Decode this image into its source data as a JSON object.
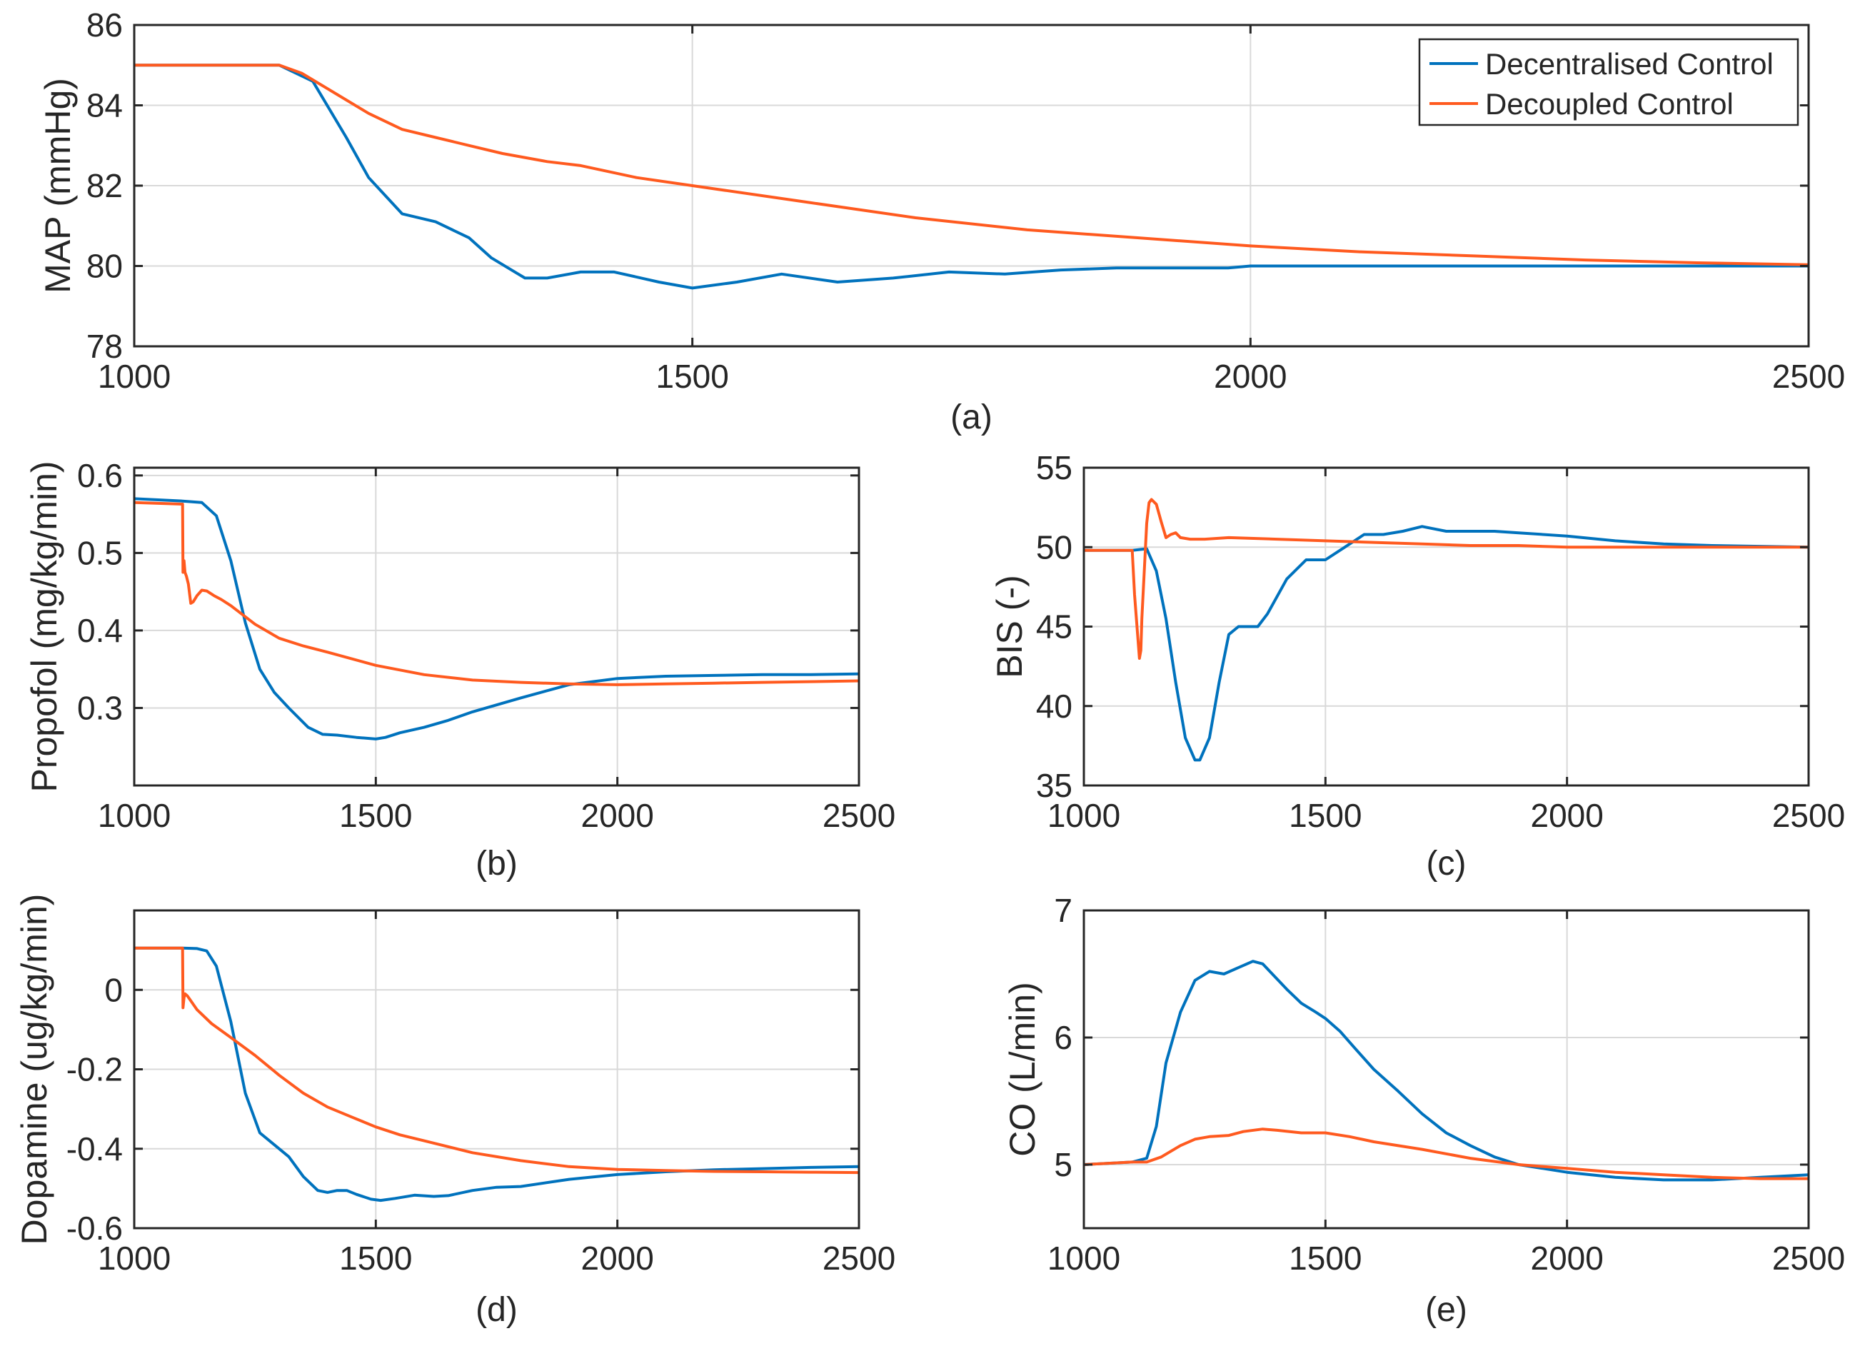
{
  "colors": {
    "decentralised": "#0072BD",
    "decoupled": "#FF5A1F",
    "grid": "#d9d9d9",
    "axis": "#262626"
  },
  "legend": {
    "entries": [
      "Decentralised Control",
      "Decoupled Control"
    ],
    "location": "top-right"
  },
  "chart_data": [
    {
      "id": "a",
      "caption": "(a)",
      "type": "line",
      "ylabel": "MAP (mmHg)",
      "xlim": [
        1000,
        2500
      ],
      "ylim": [
        78,
        86
      ],
      "xticks": [
        1000,
        1500,
        2000,
        2500
      ],
      "yticks": [
        78,
        80,
        82,
        84,
        86
      ],
      "xtick_labels": [
        "1000",
        "1500",
        "2000",
        "2500"
      ],
      "ytick_labels": [
        "78",
        "80",
        "82",
        "84",
        "86"
      ],
      "grid": true,
      "series": [
        {
          "name": "Decentralised Control",
          "x": [
            1000,
            1100,
            1130,
            1160,
            1190,
            1210,
            1240,
            1270,
            1300,
            1320,
            1350,
            1370,
            1400,
            1430,
            1470,
            1500,
            1540,
            1580,
            1630,
            1680,
            1730,
            1780,
            1830,
            1880,
            1930,
            1980,
            2000,
            2100,
            2200,
            2300,
            2500
          ],
          "y": [
            85,
            85,
            85,
            84.6,
            83.2,
            82.2,
            81.3,
            81.1,
            80.7,
            80.2,
            79.7,
            79.7,
            79.85,
            79.85,
            79.6,
            79.45,
            79.6,
            79.8,
            79.6,
            79.7,
            79.85,
            79.8,
            79.9,
            79.95,
            79.95,
            79.95,
            80,
            80,
            80,
            80,
            80
          ]
        },
        {
          "name": "Decoupled Control",
          "x": [
            1000,
            1130,
            1150,
            1180,
            1210,
            1240,
            1270,
            1300,
            1330,
            1370,
            1400,
            1450,
            1500,
            1600,
            1700,
            1800,
            1900,
            2000,
            2100,
            2200,
            2300,
            2400,
            2500
          ],
          "y": [
            85,
            85,
            84.8,
            84.3,
            83.8,
            83.4,
            83.2,
            83.0,
            82.8,
            82.6,
            82.5,
            82.2,
            82.0,
            81.6,
            81.2,
            80.9,
            80.7,
            80.5,
            80.35,
            80.25,
            80.15,
            80.08,
            80.03
          ]
        }
      ]
    },
    {
      "id": "b",
      "caption": "(b)",
      "type": "line",
      "ylabel": "Propofol (mg/kg/min)",
      "xlim": [
        1000,
        2500
      ],
      "ylim": [
        0.2,
        0.61
      ],
      "xticks": [
        1000,
        1500,
        2000,
        2500
      ],
      "yticks": [
        0.3,
        0.4,
        0.5,
        0.6
      ],
      "xtick_labels": [
        "1000",
        "1500",
        "2000",
        "2500"
      ],
      "ytick_labels": [
        "0.3",
        "0.4",
        "0.5",
        "0.6"
      ],
      "grid": true,
      "series": [
        {
          "name": "Decentralised Control",
          "x": [
            1000,
            1100,
            1140,
            1170,
            1200,
            1230,
            1260,
            1290,
            1320,
            1360,
            1390,
            1420,
            1460,
            1500,
            1520,
            1550,
            1600,
            1650,
            1700,
            1800,
            1900,
            2000,
            2100,
            2200,
            2300,
            2400,
            2500
          ],
          "y": [
            0.57,
            0.567,
            0.565,
            0.548,
            0.49,
            0.41,
            0.35,
            0.32,
            0.3,
            0.275,
            0.266,
            0.265,
            0.262,
            0.26,
            0.262,
            0.268,
            0.275,
            0.284,
            0.295,
            0.313,
            0.33,
            0.338,
            0.341,
            0.342,
            0.343,
            0.343,
            0.344
          ]
        },
        {
          "name": "Decoupled Control",
          "x": [
            1000,
            1100,
            1101,
            1103,
            1105,
            1108,
            1112,
            1117,
            1122,
            1130,
            1140,
            1150,
            1165,
            1180,
            1200,
            1250,
            1300,
            1350,
            1400,
            1500,
            1600,
            1700,
            1800,
            1900,
            2000,
            2100,
            2200,
            2300,
            2400,
            2500
          ],
          "y": [
            0.565,
            0.563,
            0.475,
            0.49,
            0.475,
            0.47,
            0.46,
            0.435,
            0.437,
            0.445,
            0.452,
            0.451,
            0.445,
            0.44,
            0.432,
            0.408,
            0.39,
            0.38,
            0.372,
            0.355,
            0.343,
            0.336,
            0.333,
            0.331,
            0.33,
            0.331,
            0.332,
            0.333,
            0.334,
            0.335
          ]
        }
      ]
    },
    {
      "id": "c",
      "caption": "(c)",
      "type": "line",
      "ylabel": "BIS (-)",
      "xlim": [
        1000,
        2500
      ],
      "ylim": [
        35,
        55
      ],
      "xticks": [
        1000,
        1500,
        2000,
        2500
      ],
      "yticks": [
        35,
        40,
        45,
        50,
        55
      ],
      "xtick_labels": [
        "1000",
        "1500",
        "2000",
        "2500"
      ],
      "ytick_labels": [
        "35",
        "40",
        "45",
        "50",
        "55"
      ],
      "grid": true,
      "series": [
        {
          "name": "Decentralised Control",
          "x": [
            1000,
            1100,
            1130,
            1150,
            1170,
            1190,
            1210,
            1230,
            1240,
            1260,
            1280,
            1300,
            1320,
            1340,
            1360,
            1380,
            1420,
            1460,
            1480,
            1500,
            1540,
            1580,
            1620,
            1660,
            1700,
            1750,
            1800,
            1850,
            1900,
            2000,
            2100,
            2200,
            2300,
            2400,
            2500
          ],
          "y": [
            49.8,
            49.8,
            49.9,
            48.5,
            45.5,
            41.5,
            38.0,
            36.6,
            36.6,
            38.0,
            41.5,
            44.5,
            45.0,
            45.0,
            45.0,
            45.8,
            48.0,
            49.2,
            49.2,
            49.2,
            50.0,
            50.8,
            50.8,
            51.0,
            51.3,
            51.0,
            51.0,
            51.0,
            50.9,
            50.7,
            50.4,
            50.2,
            50.1,
            50.05,
            50.0
          ]
        },
        {
          "name": "Decoupled Control",
          "x": [
            1000,
            1100,
            1105,
            1110,
            1115,
            1118,
            1120,
            1125,
            1130,
            1135,
            1140,
            1150,
            1160,
            1170,
            1180,
            1190,
            1200,
            1220,
            1250,
            1300,
            1400,
            1500,
            1600,
            1700,
            1800,
            1900,
            2000,
            2100,
            2200,
            2300,
            2400,
            2500
          ],
          "y": [
            49.8,
            49.8,
            47,
            45,
            43,
            43.5,
            45.5,
            48.5,
            51.5,
            52.8,
            53,
            52.7,
            51.6,
            50.6,
            50.8,
            50.9,
            50.6,
            50.5,
            50.5,
            50.6,
            50.5,
            50.4,
            50.3,
            50.2,
            50.1,
            50.1,
            50.0,
            50.0,
            50.0,
            50.0,
            50.0,
            50.0
          ]
        }
      ]
    },
    {
      "id": "d",
      "caption": "(d)",
      "type": "line",
      "ylabel": "Dopamine (ug/kg/min)",
      "xlim": [
        1000,
        2500
      ],
      "ylim": [
        -0.6,
        0.2
      ],
      "xticks": [
        1000,
        1500,
        2000,
        2500
      ],
      "yticks": [
        -0.6,
        -0.4,
        -0.2,
        0
      ],
      "xtick_labels": [
        "1000",
        "1500",
        "2000",
        "2500"
      ],
      "ytick_labels": [
        "-0.6",
        "-0.4",
        "-0.2",
        "0"
      ],
      "grid": true,
      "series": [
        {
          "name": "Decentralised Control",
          "x": [
            1000,
            1100,
            1130,
            1150,
            1170,
            1200,
            1230,
            1260,
            1290,
            1320,
            1350,
            1380,
            1400,
            1420,
            1440,
            1460,
            1490,
            1510,
            1540,
            1580,
            1620,
            1650,
            1700,
            1750,
            1800,
            1900,
            2000,
            2100,
            2200,
            2300,
            2400,
            2500
          ],
          "y": [
            0.105,
            0.105,
            0.104,
            0.098,
            0.06,
            -0.08,
            -0.26,
            -0.36,
            -0.39,
            -0.42,
            -0.47,
            -0.505,
            -0.51,
            -0.505,
            -0.505,
            -0.515,
            -0.527,
            -0.53,
            -0.525,
            -0.517,
            -0.52,
            -0.518,
            -0.505,
            -0.497,
            -0.495,
            -0.477,
            -0.465,
            -0.458,
            -0.453,
            -0.45,
            -0.447,
            -0.445
          ]
        },
        {
          "name": "Decoupled Control",
          "x": [
            1000,
            1100,
            1101,
            1103,
            1105,
            1110,
            1130,
            1160,
            1200,
            1250,
            1300,
            1350,
            1400,
            1450,
            1500,
            1550,
            1600,
            1700,
            1800,
            1900,
            2000,
            2100,
            2200,
            2300,
            2400,
            2500
          ],
          "y": [
            0.105,
            0.105,
            -0.045,
            -0.02,
            -0.01,
            -0.015,
            -0.05,
            -0.085,
            -0.12,
            -0.165,
            -0.215,
            -0.26,
            -0.295,
            -0.32,
            -0.345,
            -0.365,
            -0.38,
            -0.41,
            -0.43,
            -0.445,
            -0.452,
            -0.455,
            -0.457,
            -0.458,
            -0.459,
            -0.46
          ]
        }
      ]
    },
    {
      "id": "e",
      "caption": "(e)",
      "type": "line",
      "ylabel": "CO (L/min)",
      "xlim": [
        1000,
        2500
      ],
      "ylim": [
        4.5,
        7
      ],
      "xticks": [
        1000,
        1500,
        2000,
        2500
      ],
      "yticks": [
        5,
        6,
        7
      ],
      "xtick_labels": [
        "1000",
        "1500",
        "2000",
        "2500"
      ],
      "ytick_labels": [
        "5",
        "6",
        "7"
      ],
      "grid": true,
      "series": [
        {
          "name": "Decentralised Control",
          "x": [
            1000,
            1100,
            1130,
            1150,
            1170,
            1200,
            1230,
            1260,
            1290,
            1320,
            1350,
            1370,
            1390,
            1420,
            1450,
            1480,
            1500,
            1530,
            1560,
            1600,
            1650,
            1700,
            1750,
            1800,
            1850,
            1900,
            1950,
            2000,
            2100,
            2200,
            2300,
            2400,
            2500
          ],
          "y": [
            5.0,
            5.02,
            5.05,
            5.3,
            5.8,
            6.2,
            6.45,
            6.52,
            6.5,
            6.55,
            6.6,
            6.58,
            6.5,
            6.38,
            6.27,
            6.2,
            6.15,
            6.05,
            5.92,
            5.75,
            5.58,
            5.4,
            5.25,
            5.15,
            5.06,
            5.0,
            4.97,
            4.94,
            4.9,
            4.88,
            4.88,
            4.9,
            4.92
          ]
        },
        {
          "name": "Decoupled Control",
          "x": [
            1000,
            1100,
            1130,
            1160,
            1200,
            1230,
            1260,
            1300,
            1330,
            1370,
            1400,
            1450,
            1500,
            1550,
            1600,
            1700,
            1800,
            1900,
            2000,
            2100,
            2200,
            2300,
            2400,
            2500
          ],
          "y": [
            5.0,
            5.02,
            5.02,
            5.06,
            5.15,
            5.2,
            5.22,
            5.23,
            5.26,
            5.28,
            5.27,
            5.25,
            5.25,
            5.22,
            5.18,
            5.12,
            5.05,
            5.0,
            4.97,
            4.94,
            4.92,
            4.9,
            4.89,
            4.89
          ]
        }
      ]
    }
  ]
}
